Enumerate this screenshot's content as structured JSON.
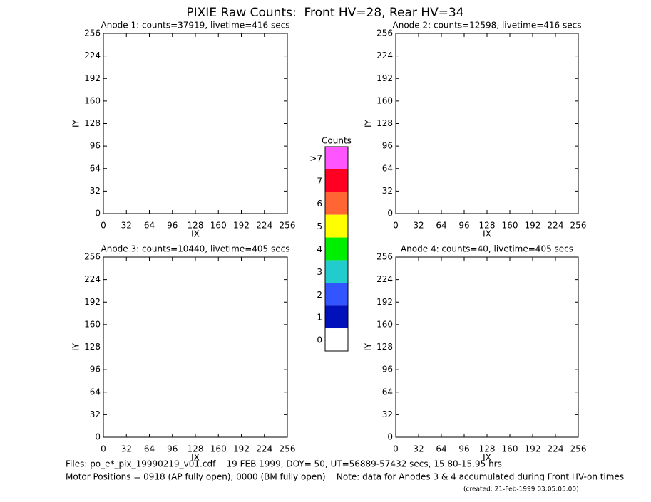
{
  "title": "PIXIE Raw Counts:  Front HV=28, Rear HV=34",
  "chart_data": [
    {
      "type": "heatmap",
      "title": "Anode 1: counts=37919, livetime=416 secs",
      "xlabel": "IX",
      "ylabel": "IY",
      "xlim": [
        0,
        256
      ],
      "ylim": [
        0,
        256
      ],
      "xticks": [
        0,
        32,
        64,
        96,
        128,
        160,
        192,
        224,
        256
      ],
      "yticks": [
        0,
        32,
        64,
        96,
        128,
        160,
        192,
        224,
        256
      ]
    },
    {
      "type": "heatmap",
      "title": "Anode 2: counts=12598, livetime=416 secs",
      "xlabel": "IX",
      "ylabel": "IY",
      "xlim": [
        0,
        256
      ],
      "ylim": [
        0,
        256
      ],
      "xticks": [
        0,
        32,
        64,
        96,
        128,
        160,
        192,
        224,
        256
      ],
      "yticks": [
        0,
        32,
        64,
        96,
        128,
        160,
        192,
        224,
        256
      ]
    },
    {
      "type": "heatmap",
      "title": "Anode 3: counts=10440, livetime=405 secs",
      "xlabel": "IX",
      "ylabel": "IY",
      "xlim": [
        0,
        256
      ],
      "ylim": [
        0,
        256
      ],
      "xticks": [
        0,
        32,
        64,
        96,
        128,
        160,
        192,
        224,
        256
      ],
      "yticks": [
        0,
        32,
        64,
        96,
        128,
        160,
        192,
        224,
        256
      ]
    },
    {
      "type": "heatmap",
      "title": "Anode 4: counts=40, livetime=405 secs",
      "xlabel": "IX",
      "ylabel": "IY",
      "xlim": [
        0,
        256
      ],
      "ylim": [
        0,
        256
      ],
      "xticks": [
        0,
        32,
        64,
        96,
        128,
        160,
        192,
        224,
        256
      ],
      "yticks": [
        0,
        32,
        64,
        96,
        128,
        160,
        192,
        224,
        256
      ]
    }
  ],
  "colorbar": {
    "title": "Counts",
    "levels": [
      {
        "label": ">7",
        "color": "#ff55ff"
      },
      {
        "label": "7",
        "color": "#ff0022"
      },
      {
        "label": "6",
        "color": "#ff6633"
      },
      {
        "label": "5",
        "color": "#ffff00"
      },
      {
        "label": "4",
        "color": "#00ee00"
      },
      {
        "label": "3",
        "color": "#22cccc"
      },
      {
        "label": "2",
        "color": "#3355ff"
      },
      {
        "label": "1",
        "color": "#0011bb"
      },
      {
        "label": "0",
        "color": "#ffffff"
      }
    ]
  },
  "footer": [
    "Files: po_e*_pix_19990219_v01.cdf    19 FEB 1999, DOY= 50, UT=56889-57432 secs, 15.80-15.95 hrs",
    "Motor Positions = 0918 (AP fully open), 0000 (BM fully open)    Note: data for Anodes 3 & 4 accumulated during Front HV-on times",
    "(created: 21-Feb-1999 03:05:05.00)"
  ]
}
